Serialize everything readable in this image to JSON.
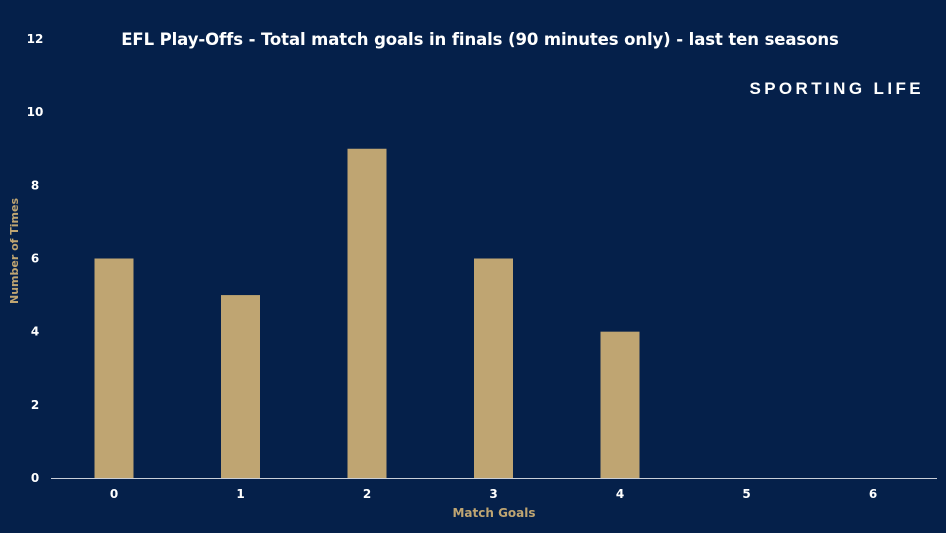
{
  "colors": {
    "background": "#05204a",
    "bar": "#bfa572",
    "axis_label": "#bfa572",
    "tick_label": "#ffffff",
    "axis_line": "#c9ced8"
  },
  "brand": {
    "name": "SPORTING LIFE"
  },
  "chart_data": {
    "type": "bar",
    "title": "EFL Play-Offs - Total match goals in finals (90 minutes only) - last ten seasons",
    "xlabel": "Match Goals",
    "ylabel": "Number of Times",
    "categories": [
      "0",
      "1",
      "2",
      "3",
      "4",
      "5",
      "6"
    ],
    "values": [
      6,
      5,
      9,
      6,
      4,
      0,
      0
    ],
    "ylim": [
      0,
      12
    ],
    "yticks": [
      "0",
      "2",
      "4",
      "6",
      "8",
      "10",
      "12"
    ],
    "grid": false,
    "legend": "none"
  }
}
